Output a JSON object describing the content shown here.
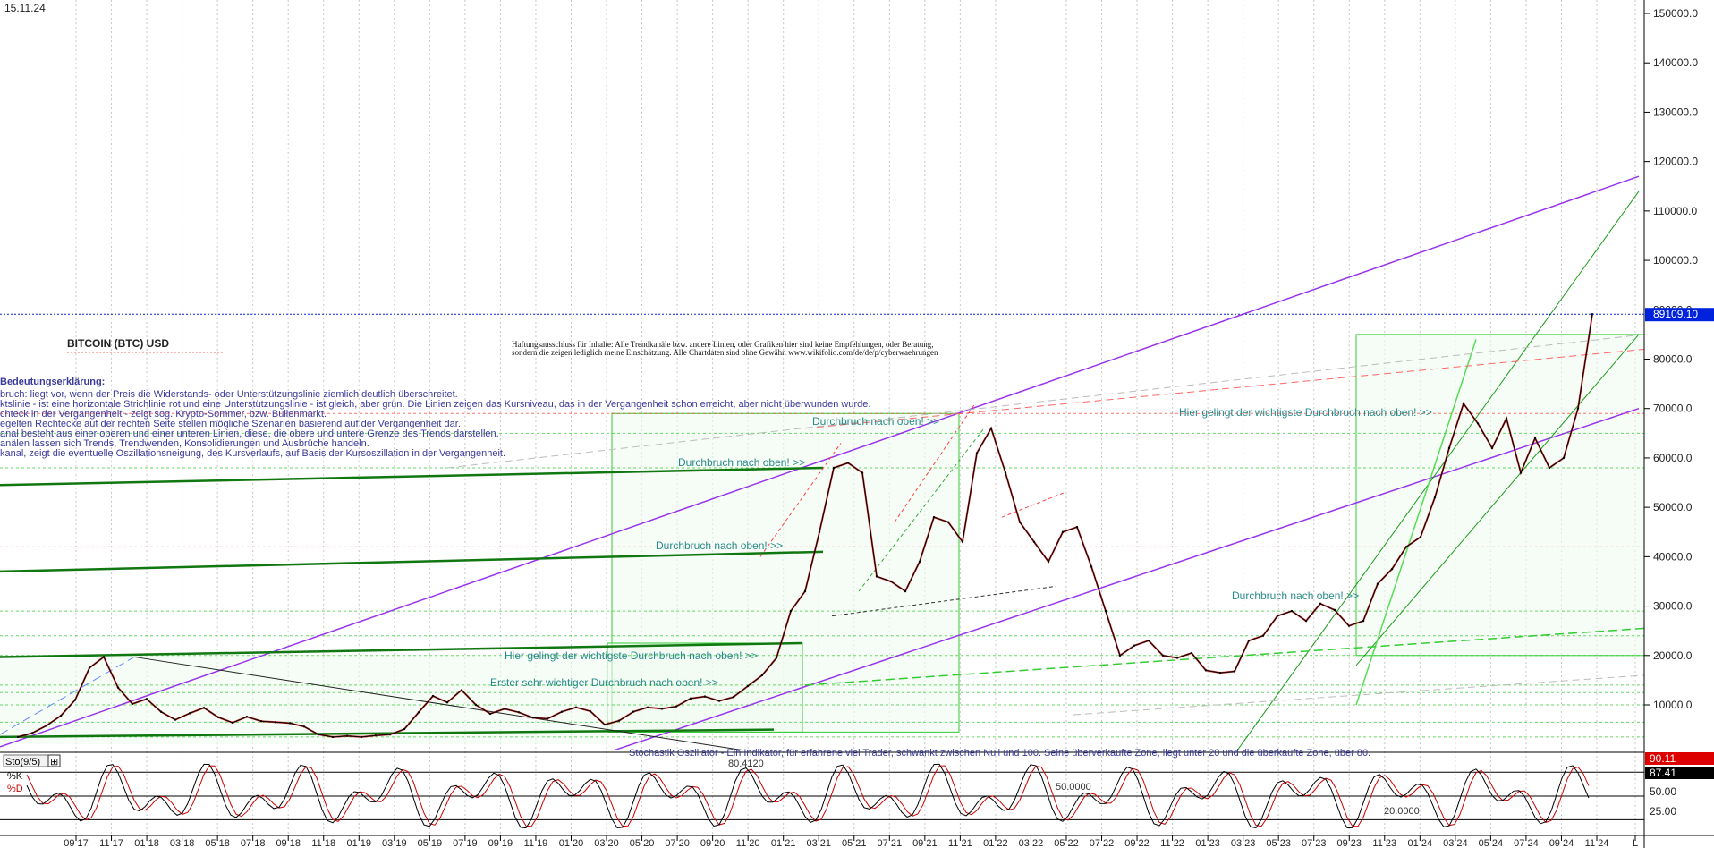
{
  "header": {
    "date": "15.11.24",
    "title": "BITCOIN (BTC) USD",
    "disclaimer_line1": "Haftungsausschluss für Inhalte: Alle Trendkanäle bzw. andere Linien, oder Grafiken hier sind keine Empfehlungen, oder Beratung,",
    "disclaimer_line2": "sondern die zeigen lediglich meine  Einschätzung. Alle Chartdaten sind ohne Gewähr.  www.wikifolio.com/de/de/p/cyberwaehrungen"
  },
  "legend_notes": {
    "heading": "Bedeutungserklärung:",
    "lines": [
      "bruch: liegt vor, wenn der Preis die Widerstands- oder Unterstützungslinie ziemlich deutlich überschreitet.",
      "ktslinie - ist eine horizontale Strichlinie rot und eine Unterstützungslinie - ist gleich, aber grün. Die Linien zeigen das Kursniveau, das in der Vergangenheit schon erreicht, aber nicht überwunden wurde.",
      "chteck in der Vergangenheit - zeigt sog. Krypto-Sommer, bzw. Bullenmarkt.",
      "egelten Rechtecke auf der rechten Seite stellen mögliche Szenarien basierend auf der Vergangenheit dar.",
      "anal besteht aus einer oberen und einer unteren Linien, diese, die obere und untere Grenze des Trends darstellen.",
      "anälen lassen sich Trends, Trendwenden, Konsolidierungen und Ausbrüche handeln.",
      "kanal, zeigt die eventuelle Oszillationsneigung, des Kursverlaufs, auf Basis der Kursoszillation in der Vergangenheit."
    ]
  },
  "annotations": [
    "Durchbruch nach oben! >>",
    "Durchbruch nach oben! >>",
    "Durchbruch nach oben! >>",
    "Hier gelingt der wichtigste Durchbruch nach oben! >>",
    "Erster sehr wichtiger Durchbruch nach oben! >>",
    "Durchbruch nach oben! >>",
    "Hier gelingt der wichtigste Durchbruch nach oben! >>"
  ],
  "price_label": "89109.10",
  "price_axis_ticks": [
    "150000.0",
    "140000.0",
    "130000.0",
    "120000.0",
    "110000.0",
    "100000.0",
    "90000.0",
    "80000.0",
    "70000.0",
    "60000.0",
    "50000.0",
    "40000.0",
    "30000.0",
    "20000.0",
    "10000.0"
  ],
  "oscillator": {
    "title": "Sto(9/5)",
    "k_label": "%K",
    "d_label": "%D",
    "description": "Stochastik Oszillator - Ein Indikator, für erfahrene viel Trader, schwankt zwischen Null und 100. Seine überverkaufte Zone, liegt unter 20 und die überkaufte Zone, über 80.",
    "level80_label": "80.4120",
    "level50_label": "50.0000",
    "level20_label": "20.0000",
    "k_value": "90.11",
    "d_value": "87.41",
    "axis_ticks": [
      "50.00",
      "25.00"
    ]
  },
  "time_axis": [
    "09 17",
    "11 17",
    "01 18",
    "03 18",
    "05 18",
    "07 18",
    "09 18",
    "11 18",
    "01 19",
    "03 19",
    "05 19",
    "07 19",
    "09 19",
    "11 19",
    "01 20",
    "03 20",
    "05 20",
    "07 20",
    "09 20",
    "11 20",
    "01 21",
    "03 21",
    "05 21",
    "07 21",
    "09 21",
    "11 21",
    "01 22",
    "03 22",
    "05 22",
    "07 22",
    "09 22",
    "11 22",
    "01 23",
    "03 23",
    "05 23",
    "07 23",
    "09 23",
    "11 23",
    "01 24",
    "03 24",
    "05 24",
    "07 24",
    "09 24",
    "11 24",
    "L"
  ],
  "colors": {
    "price_line": "#000000",
    "price_red": "#cc0000",
    "purple_channel": "#9933ee",
    "green_channel": "#1a9a1a",
    "support_green": "#33cc33",
    "resistance_red": "#ff4444",
    "price_tag_bg": "#0022dd",
    "k_tag_bg": "#dd0000"
  },
  "chart_data": {
    "type": "line",
    "title": "BITCOIN (BTC) USD",
    "x_start": "09 17",
    "x_end": "11 24",
    "ylim": [
      0,
      155000
    ],
    "series": [
      {
        "values": [
          3500,
          4300,
          5800,
          7800,
          11000,
          17500,
          19700,
          13500,
          10200,
          11200,
          8600,
          7000,
          8300,
          9400,
          7500,
          6400,
          7600,
          6700,
          6500,
          6300,
          5600,
          4000,
          3500,
          3700,
          3500,
          3800,
          4000,
          5100,
          8500,
          11800,
          10500,
          13000,
          10000,
          8200,
          9200,
          8500,
          7400,
          7200,
          8600,
          9500,
          8700,
          6000,
          6800,
          8600,
          9500,
          9200,
          9700,
          11300,
          11700,
          10800,
          11600,
          13800,
          16000,
          19500,
          29000,
          33000,
          45000,
          58000,
          59000,
          57000,
          36000,
          35000,
          33000,
          39000,
          48000,
          47000,
          43000,
          61000,
          66000,
          57000,
          47000,
          43000,
          39000,
          45000,
          46000,
          38000,
          29000,
          20000,
          22000,
          23000,
          20000,
          19500,
          20500,
          17000,
          16500,
          16800,
          23000,
          24000,
          28000,
          29000,
          27000,
          30500,
          29200,
          26000,
          27000,
          34500,
          37500,
          42000,
          44000,
          52000,
          62000,
          71000,
          67000,
          62000,
          68000,
          57000,
          64000,
          58000,
          60000,
          70000,
          89109
        ]
      }
    ],
    "horizontal_levels": [
      69000,
      65000,
      58000,
      42000,
      29000,
      24000,
      20000,
      14000,
      12500,
      11000,
      10000,
      6500,
      3500
    ],
    "oscillator_levels": [
      80.412,
      50,
      20
    ]
  }
}
